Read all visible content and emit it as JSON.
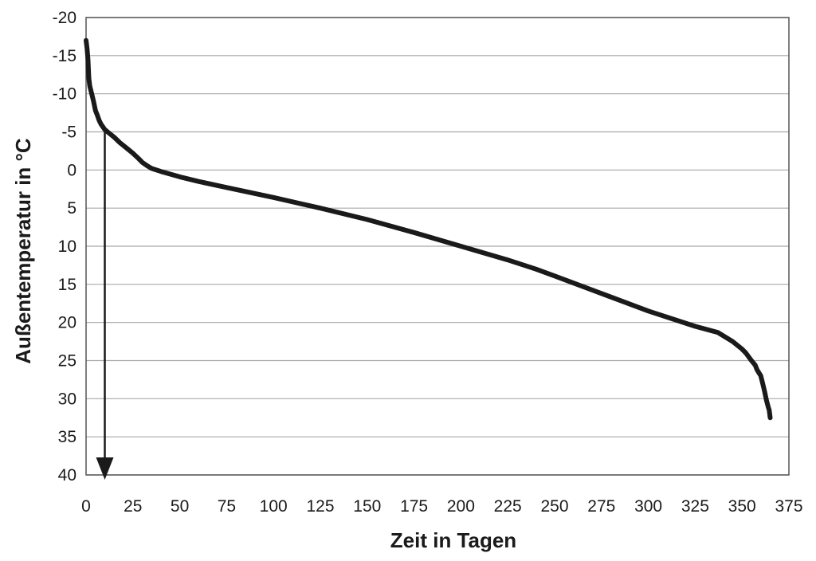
{
  "chart_data": {
    "type": "line",
    "title": "",
    "xlabel": "Zeit in Tagen",
    "ylabel": "Außentemperatur in °C",
    "xlim": [
      0,
      375
    ],
    "ylim": [
      -20,
      40
    ],
    "y_axis_inverted": true,
    "x_ticks": [
      0,
      25,
      50,
      75,
      100,
      125,
      150,
      175,
      200,
      225,
      250,
      275,
      300,
      325,
      350,
      375
    ],
    "y_ticks": [
      -20,
      -15,
      -10,
      -5,
      0,
      5,
      10,
      15,
      20,
      25,
      30,
      35,
      40
    ],
    "grid": {
      "horizontal": true,
      "vertical": false
    },
    "colors": {
      "line": "#1a1a1a",
      "grid": "#a8a8a8",
      "frame": "#555555"
    },
    "series": [
      {
        "x": [
          0,
          0.5,
          1,
          1.5,
          2,
          3,
          4,
          5,
          6,
          7,
          8,
          10,
          12,
          15,
          18,
          20,
          22,
          25,
          28,
          30,
          33,
          35,
          40,
          50,
          60,
          75,
          100,
          125,
          150,
          175,
          200,
          225,
          240,
          250,
          275,
          300,
          325,
          337,
          345,
          350,
          352,
          355,
          357,
          358,
          360,
          361,
          362,
          363,
          364,
          364.5,
          365
        ],
        "y": [
          -17,
          -16,
          -14.5,
          -12,
          -11,
          -10,
          -9,
          -7.8,
          -7.2,
          -6.5,
          -6,
          -5.3,
          -4.9,
          -4.3,
          -3.6,
          -3.2,
          -2.8,
          -2.2,
          -1.5,
          -1.0,
          -0.5,
          -0.2,
          0.2,
          0.9,
          1.5,
          2.3,
          3.6,
          5.0,
          6.5,
          8.2,
          10.0,
          11.8,
          13.0,
          13.9,
          16.2,
          18.5,
          20.5,
          21.3,
          22.5,
          23.5,
          24.0,
          25.0,
          25.6,
          26.2,
          27.0,
          28.0,
          29.0,
          30.2,
          31.1,
          31.5,
          32.5
        ]
      }
    ],
    "annotation": {
      "type": "arrow",
      "x": 10,
      "y_from": -5,
      "y_to": 40
    }
  }
}
